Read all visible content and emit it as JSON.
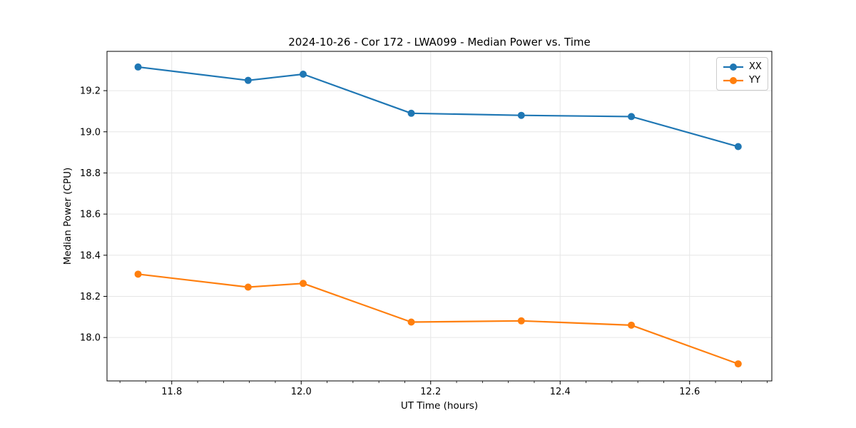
{
  "chart_data": {
    "type": "line",
    "title": "2024-10-26 - Cor 172 - LWA099 - Median Power vs. Time",
    "xlabel": "UT Time (hours)",
    "ylabel": "Median Power (CPU)",
    "x": [
      11.748,
      11.918,
      12.003,
      12.17,
      12.34,
      12.51,
      12.675
    ],
    "series": [
      {
        "name": "XX",
        "color": "#1f77b4",
        "values": [
          19.315,
          19.25,
          19.28,
          19.09,
          19.08,
          19.074,
          18.928
        ]
      },
      {
        "name": "YY",
        "color": "#ff7f0e",
        "values": [
          18.308,
          18.245,
          18.263,
          18.075,
          18.081,
          18.06,
          17.872
        ]
      }
    ],
    "xlim": [
      11.7,
      12.727
    ],
    "ylim": [
      17.789,
      19.391
    ],
    "xticks": [
      11.8,
      12.0,
      12.2,
      12.4,
      12.6
    ],
    "yticks": [
      18.0,
      18.2,
      18.4,
      18.6,
      18.8,
      19.0,
      19.2
    ],
    "x_minor_tick_step": 0.04,
    "grid": true,
    "marker": "circle",
    "legend": {
      "position": "upper right",
      "entries": [
        "XX",
        "YY"
      ]
    },
    "colors": {
      "axes": "#000000",
      "grid": "#e6e6e6",
      "background": "#ffffff",
      "tick_text": "#000000"
    }
  }
}
